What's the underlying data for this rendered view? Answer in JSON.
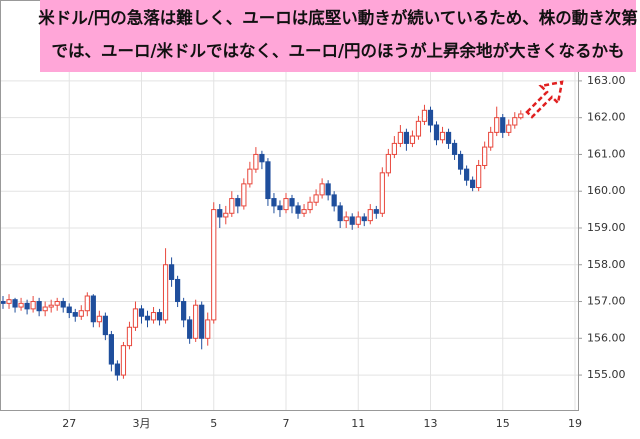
{
  "chart_data": {
    "type": "candlestick",
    "annotations": [
      "米ドル/円の急落は難しく、ユーロは底堅い動きが続いているため、株の動き次第",
      "では、ユーロ/米ドルではなく、ユーロ/円のほうが上昇余地が大きくなるかも"
    ],
    "categories": [
      null,
      null,
      null,
      null,
      null,
      null,
      null,
      null,
      null,
      null,
      null,
      "27",
      null,
      null,
      null,
      null,
      null,
      null,
      null,
      null,
      null,
      null,
      null,
      "3月",
      null,
      null,
      null,
      null,
      null,
      null,
      null,
      null,
      null,
      null,
      null,
      "5",
      null,
      null,
      null,
      null,
      null,
      null,
      null,
      null,
      null,
      null,
      null,
      "7",
      null,
      null,
      null,
      null,
      null,
      null,
      null,
      null,
      null,
      null,
      null,
      "11",
      null,
      null,
      null,
      null,
      null,
      null,
      null,
      null,
      null,
      null,
      null,
      "13",
      null,
      null,
      null,
      null,
      null,
      null,
      null,
      null,
      null,
      null,
      null,
      "15",
      null,
      null,
      null,
      null,
      null,
      null,
      null,
      null,
      null,
      null,
      null,
      "19"
    ],
    "open": [
      157.0,
      156.95,
      157.05,
      156.85,
      156.95,
      156.8,
      157.0,
      156.75,
      156.85,
      156.9,
      157.0,
      156.85,
      156.7,
      156.6,
      156.75,
      157.15,
      156.45,
      156.6,
      156.1,
      155.3,
      155.0,
      155.8,
      156.3,
      156.8,
      156.6,
      156.5,
      156.7,
      156.5,
      158.0,
      157.6,
      157.0,
      156.5,
      156.0,
      156.9,
      156.0,
      156.5,
      159.5,
      159.3,
      159.4,
      159.8,
      159.6,
      160.2,
      160.6,
      161.0,
      160.8,
      159.8,
      159.6,
      159.5,
      159.8,
      159.6,
      159.4,
      159.5,
      159.7,
      159.9,
      160.2,
      159.9,
      159.6,
      159.2,
      159.3,
      159.1,
      159.3,
      159.2,
      159.5,
      159.4,
      160.5,
      161.0,
      161.3,
      161.6,
      161.3,
      161.5,
      161.9,
      162.2,
      161.8,
      161.4,
      161.6,
      161.3,
      161.0,
      160.6,
      160.3,
      160.1,
      160.7,
      161.2,
      161.6,
      162.0,
      161.6,
      161.8,
      162.0,
      null,
      null,
      null,
      null,
      null,
      null,
      null,
      null,
      null
    ],
    "high": [
      157.15,
      157.2,
      157.1,
      157.1,
      157.05,
      157.15,
      157.1,
      157.0,
      157.05,
      157.1,
      157.1,
      156.95,
      156.8,
      156.9,
      157.25,
      157.2,
      156.75,
      156.7,
      156.2,
      155.4,
      155.9,
      156.45,
      157.0,
      156.9,
      156.75,
      156.85,
      156.8,
      158.45,
      158.2,
      157.7,
      157.1,
      156.6,
      157.05,
      157.0,
      156.7,
      159.7,
      159.65,
      159.6,
      160.0,
      159.9,
      160.35,
      160.8,
      161.2,
      161.1,
      160.9,
      159.95,
      159.75,
      159.95,
      159.9,
      159.7,
      159.65,
      159.85,
      160.05,
      160.35,
      160.3,
      160.0,
      159.7,
      159.45,
      159.4,
      159.45,
      159.4,
      159.65,
      159.6,
      160.65,
      161.15,
      161.5,
      161.8,
      161.7,
      161.65,
      162.05,
      162.35,
      162.3,
      161.9,
      161.75,
      161.7,
      161.4,
      161.1,
      160.7,
      160.4,
      160.85,
      161.35,
      161.75,
      162.3,
      162.1,
      161.95,
      162.15,
      162.2,
      null,
      null,
      null,
      null,
      null,
      null,
      null,
      null,
      null
    ],
    "low": [
      156.8,
      156.8,
      156.7,
      156.75,
      156.65,
      156.7,
      156.6,
      156.6,
      156.7,
      156.75,
      156.7,
      156.55,
      156.45,
      156.5,
      156.6,
      156.3,
      156.3,
      155.95,
      155.1,
      154.85,
      154.9,
      155.7,
      156.2,
      156.4,
      156.3,
      156.4,
      156.35,
      156.4,
      157.4,
      156.85,
      156.3,
      155.85,
      155.9,
      155.7,
      155.8,
      156.4,
      159.0,
      159.1,
      159.3,
      159.4,
      159.5,
      160.1,
      160.5,
      160.6,
      159.6,
      159.4,
      159.3,
      159.4,
      159.4,
      159.25,
      159.3,
      159.4,
      159.6,
      159.8,
      159.75,
      159.45,
      159.0,
      159.0,
      158.95,
      159.0,
      159.05,
      159.1,
      159.25,
      159.3,
      160.4,
      160.9,
      161.2,
      161.1,
      161.2,
      161.4,
      161.8,
      161.6,
      161.25,
      161.3,
      161.15,
      160.85,
      160.45,
      160.15,
      160.0,
      160.0,
      160.6,
      161.1,
      161.5,
      161.45,
      161.5,
      161.7,
      161.95,
      null,
      null,
      null,
      null,
      null,
      null,
      null,
      null,
      null
    ],
    "close": [
      156.95,
      157.05,
      156.85,
      156.95,
      156.8,
      157.0,
      156.75,
      156.85,
      156.9,
      157.0,
      156.85,
      156.7,
      156.6,
      156.75,
      157.15,
      156.45,
      156.6,
      156.1,
      155.3,
      155.0,
      155.8,
      156.3,
      156.8,
      156.6,
      156.5,
      156.7,
      156.5,
      158.0,
      157.6,
      157.0,
      156.5,
      156.0,
      156.9,
      156.0,
      156.5,
      159.5,
      159.3,
      159.4,
      159.8,
      159.6,
      160.2,
      160.6,
      161.0,
      160.8,
      159.8,
      159.6,
      159.5,
      159.8,
      159.6,
      159.4,
      159.5,
      159.7,
      159.9,
      160.2,
      159.9,
      159.6,
      159.2,
      159.3,
      159.1,
      159.3,
      159.2,
      159.5,
      159.4,
      160.5,
      161.0,
      161.3,
      161.6,
      161.3,
      161.5,
      161.9,
      162.2,
      161.8,
      161.4,
      161.6,
      161.3,
      161.0,
      160.6,
      160.3,
      160.1,
      160.7,
      161.2,
      161.6,
      162.0,
      161.6,
      161.8,
      162.0,
      162.1,
      null,
      null,
      null,
      null,
      null,
      null,
      null,
      null,
      null
    ],
    "up_color": "#e8473c",
    "down_color": "#1f4e9c",
    "ylim": [
      154.05,
      165.2
    ],
    "yticks": [
      {
        "value": 155,
        "label": "155.00"
      },
      {
        "value": 156,
        "label": "156.00"
      },
      {
        "value": 157,
        "label": "157.00"
      },
      {
        "value": 158,
        "label": "158.00"
      },
      {
        "value": 159,
        "label": "159.00"
      },
      {
        "value": 160,
        "label": "160.00"
      },
      {
        "value": 161,
        "label": "161.00"
      },
      {
        "value": 162,
        "label": "162.00"
      },
      {
        "value": 163,
        "label": "163.00"
      }
    ],
    "grid": true
  }
}
